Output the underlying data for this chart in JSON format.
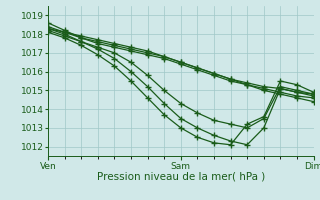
{
  "background_color": "#d0e8e8",
  "grid_color": "#a0c8c8",
  "line_color": "#1a5c1a",
  "marker": "+",
  "marker_size": 4,
  "linewidth": 0.9,
  "xlabel": "Pression niveau de la mer( hPa )",
  "xlabel_fontsize": 7.5,
  "ylim": [
    1011.5,
    1019.5
  ],
  "yticks": [
    1012,
    1013,
    1014,
    1015,
    1016,
    1017,
    1018,
    1019
  ],
  "xtick_labels": [
    "Ven",
    "Sam",
    "Dim"
  ],
  "xtick_positions": [
    0,
    48,
    96
  ],
  "xmax": 96,
  "tick_fontsize": 6.5,
  "series": [
    [
      1018.6,
      1018.2,
      1017.8,
      1017.6,
      1017.4,
      1017.2,
      1017.0,
      1016.8,
      1016.5,
      1016.2,
      1015.9,
      1015.6,
      1015.4,
      1015.2,
      1015.1,
      1014.9,
      1014.8
    ],
    [
      1018.4,
      1018.1,
      1017.8,
      1017.5,
      1017.3,
      1017.1,
      1016.9,
      1016.7,
      1016.4,
      1016.1,
      1015.8,
      1015.5,
      1015.3,
      1015.1,
      1014.9,
      1014.7,
      1014.6
    ],
    [
      1018.3,
      1018.1,
      1017.9,
      1017.7,
      1017.5,
      1017.3,
      1017.1,
      1016.8,
      1016.5,
      1016.2,
      1015.9,
      1015.6,
      1015.3,
      1015.0,
      1014.8,
      1014.6,
      1014.4
    ],
    [
      1018.2,
      1017.9,
      1017.6,
      1017.3,
      1017.0,
      1016.5,
      1015.8,
      1015.0,
      1014.3,
      1013.8,
      1013.4,
      1013.2,
      1013.0,
      1013.5,
      1015.2,
      1015.0,
      1014.8
    ],
    [
      1018.3,
      1018.0,
      1017.6,
      1017.2,
      1016.7,
      1016.0,
      1015.2,
      1014.3,
      1013.5,
      1013.0,
      1012.6,
      1012.3,
      1012.1,
      1013.0,
      1015.1,
      1014.9,
      1014.7
    ],
    [
      1018.1,
      1017.8,
      1017.4,
      1016.9,
      1016.3,
      1015.5,
      1014.6,
      1013.7,
      1013.0,
      1012.5,
      1012.2,
      1012.1,
      1013.2,
      1013.6,
      1015.5,
      1015.3,
      1014.9
    ]
  ],
  "series_xsteps": [
    0,
    6,
    12,
    18,
    24,
    30,
    36,
    42,
    48,
    54,
    60,
    66,
    72,
    78,
    84,
    90,
    96
  ]
}
